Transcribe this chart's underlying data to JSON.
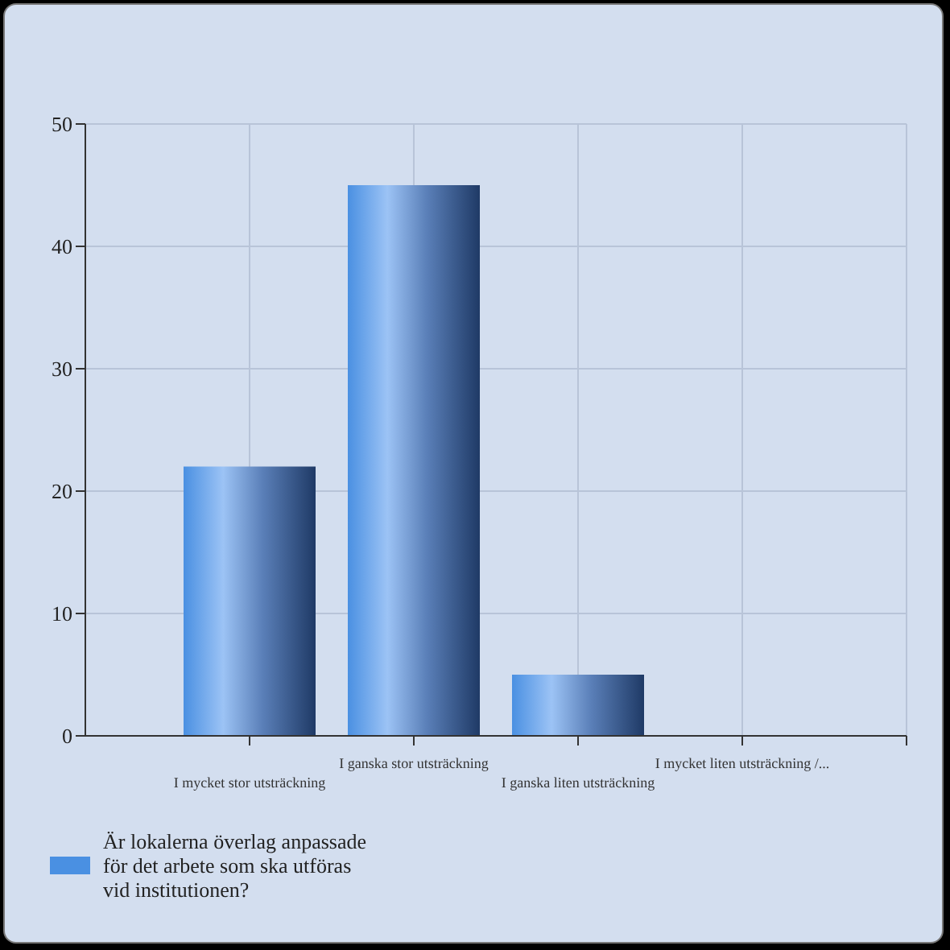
{
  "chart_data": {
    "type": "bar",
    "categories": [
      "I mycket stor utsträckning",
      "I ganska stor utsträckning",
      "I ganska liten utsträckning",
      "I mycket liten utsträckning /..."
    ],
    "series": [
      {
        "name": "Är lokalerna överlag anpassade för det arbete som ska utföras vid institutionen?",
        "color": "#4a90e2",
        "values": [
          22,
          45,
          5,
          0
        ]
      }
    ],
    "ylim": [
      0,
      50
    ],
    "yticks": [
      0,
      10,
      20,
      30,
      40,
      50
    ],
    "grid": true,
    "legend": "bottom"
  }
}
